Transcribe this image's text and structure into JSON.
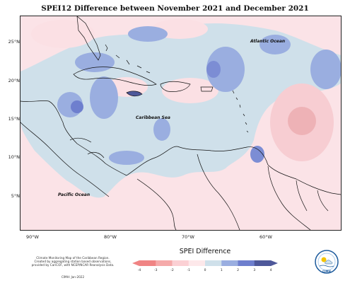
{
  "title": "SPEI12 Difference between November 2021 and December 2021",
  "map": {
    "lat_labels": [
      "25°N",
      "20°N",
      "15°N",
      "10°N",
      "5°N"
    ],
    "lon_labels": [
      "90°W",
      "80°W",
      "70°W",
      "60°W"
    ],
    "places": {
      "atlantic": "Atlantic Ocean",
      "caribbean": "Caribbean Sea",
      "pacific": "Pacific Ocean"
    }
  },
  "credit": {
    "line1": "Climate Monitoring Map of the Caribbean Region.",
    "line2": "Created by aggregating station based observations,",
    "line3": "provided by CariCOF, with NCEP/NCAR Reanalysis Data.",
    "line4": "CIMH: Jan-2022"
  },
  "legend": {
    "title": "SPEI Difference",
    "ticks": [
      "-4",
      "-3",
      "-2",
      "-1",
      "0",
      "1",
      "2",
      "3",
      "4"
    ],
    "colors": [
      "#f08484",
      "#f5aaaa",
      "#fbd0d4",
      "#fde8ea",
      "#cfe0ea",
      "#9aaee0",
      "#6e7fce",
      "#4e589a"
    ]
  },
  "logo": {
    "text": "CIMH"
  },
  "colors": {
    "dry_strong": "#f2b6b8",
    "dry_light": "#fbe0e4",
    "wet_light": "#cfe0ea",
    "wet_mid": "#9aaee0",
    "wet_strong": "#7382cf"
  }
}
